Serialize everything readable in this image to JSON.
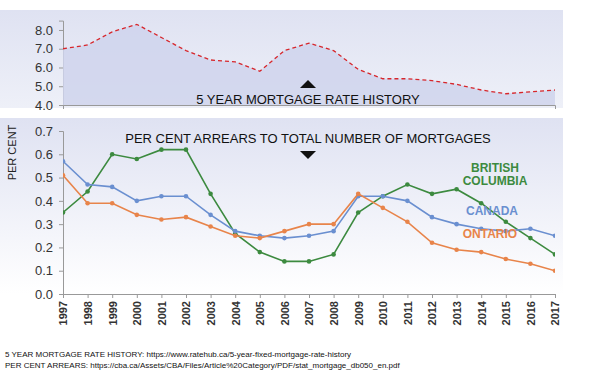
{
  "chart_data": [
    {
      "type": "area",
      "title": "5 YEAR MORTGAGE RATE HISTORY",
      "x": [
        1997,
        1998,
        1999,
        2000,
        2001,
        2002,
        2003,
        2004,
        2005,
        2006,
        2007,
        2008,
        2009,
        2010,
        2011,
        2012,
        2013,
        2014,
        2015,
        2016,
        2017
      ],
      "values": [
        7.0,
        7.2,
        7.9,
        8.3,
        7.6,
        6.9,
        6.4,
        6.3,
        5.8,
        6.9,
        7.3,
        6.9,
        5.9,
        5.4,
        5.4,
        5.3,
        5.1,
        4.8,
        4.6,
        4.7,
        4.8
      ],
      "color": "#d7262b",
      "line_style": "dashed",
      "xlim": [
        1997,
        2017
      ],
      "ylim": [
        4,
        8.5
      ],
      "yticks": [
        {
          "value": 4,
          "label": "4.0"
        },
        {
          "value": 5,
          "label": "5.0"
        },
        {
          "value": 6,
          "label": "6.0"
        },
        {
          "value": 7,
          "label": "7.0"
        },
        {
          "value": 8,
          "label": "8.0"
        }
      ],
      "tick_labels": "y",
      "grid": false
    },
    {
      "type": "line",
      "title": "PER CENT ARREARS TO TOTAL NUMBER OF MORTGAGES",
      "y_label": "PER CENT",
      "x": [
        1997,
        1998,
        1999,
        2000,
        2001,
        2002,
        2003,
        2004,
        2005,
        2006,
        2007,
        2008,
        2009,
        2010,
        2011,
        2012,
        2013,
        2014,
        2015,
        2016,
        2017
      ],
      "series": [
        {
          "name": "BRITISH COLUMBIA",
          "color": "#3c8a3f",
          "values": [
            0.35,
            0.44,
            0.6,
            0.58,
            0.62,
            0.62,
            0.43,
            0.26,
            0.18,
            0.14,
            0.14,
            0.17,
            0.35,
            0.42,
            0.47,
            0.43,
            0.45,
            0.39,
            0.31,
            0.24,
            0.17
          ]
        },
        {
          "name": "CANADA",
          "color": "#6a8fd0",
          "values": [
            0.57,
            0.47,
            0.46,
            0.4,
            0.42,
            0.42,
            0.34,
            0.27,
            0.25,
            0.24,
            0.25,
            0.27,
            0.42,
            0.42,
            0.4,
            0.33,
            0.3,
            0.28,
            0.27,
            0.28,
            0.25
          ]
        },
        {
          "name": "ONTARIO",
          "color": "#e8844a",
          "values": [
            0.51,
            0.39,
            0.39,
            0.34,
            0.32,
            0.33,
            0.29,
            0.25,
            0.24,
            0.27,
            0.3,
            0.3,
            0.43,
            0.37,
            0.31,
            0.22,
            0.19,
            0.18,
            0.15,
            0.13,
            0.1
          ]
        }
      ],
      "marker": "circle",
      "xlim": [
        1997,
        2017
      ],
      "xticks": [
        1997,
        1998,
        1999,
        2000,
        2001,
        2002,
        2003,
        2004,
        2005,
        2006,
        2007,
        2008,
        2009,
        2010,
        2011,
        2012,
        2013,
        2014,
        2015,
        2016,
        2017
      ],
      "ylim": [
        0,
        0.7
      ],
      "yticks": [
        {
          "value": 0,
          "label": "0.0"
        },
        {
          "value": 0.1,
          "label": "0.1"
        },
        {
          "value": 0.2,
          "label": "0.2"
        },
        {
          "value": 0.3,
          "label": "0.3"
        },
        {
          "value": 0.4,
          "label": "0.4"
        },
        {
          "value": 0.5,
          "label": "0.5"
        },
        {
          "value": 0.6,
          "label": "0.6"
        },
        {
          "value": 0.7,
          "label": "0.7"
        }
      ],
      "grid": false
    }
  ],
  "sources": [
    "5 YEAR MORTGAGE RATE HISTORY: https://www.ratehub.ca/5-year-fixed-mortgage-rate-history",
    "PER CENT ARREARS: https://cba.ca/Assets/CBA/Files/Article%20Category/PDF/stat_mortgage_db050_en.pdf"
  ]
}
